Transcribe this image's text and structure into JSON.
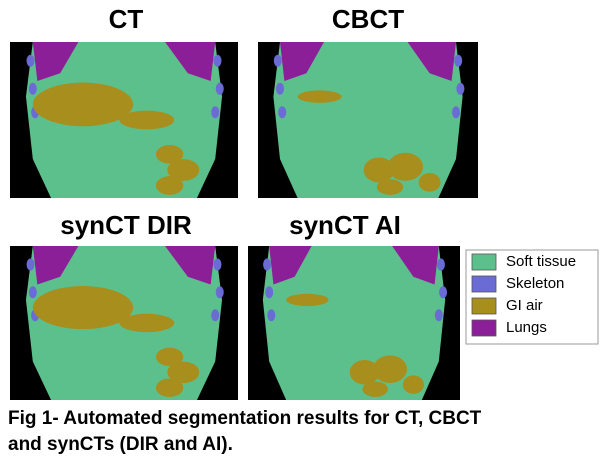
{
  "panels": [
    {
      "title": "CT"
    },
    {
      "title": "CBCT"
    },
    {
      "title": "synCT DIR"
    },
    {
      "title": "synCT AI"
    }
  ],
  "legend": [
    {
      "label": "Soft tissue",
      "color": "#5cc08c"
    },
    {
      "label": "Skeleton",
      "color": "#6b6bd6"
    },
    {
      "label": "GI air",
      "color": "#a88e1c"
    },
    {
      "label": "Lungs",
      "color": "#8b1f98"
    }
  ],
  "caption": [
    "Fig 1- Automated segmentation results for CT, CBCT",
    "and synCTs (DIR and AI)."
  ]
}
